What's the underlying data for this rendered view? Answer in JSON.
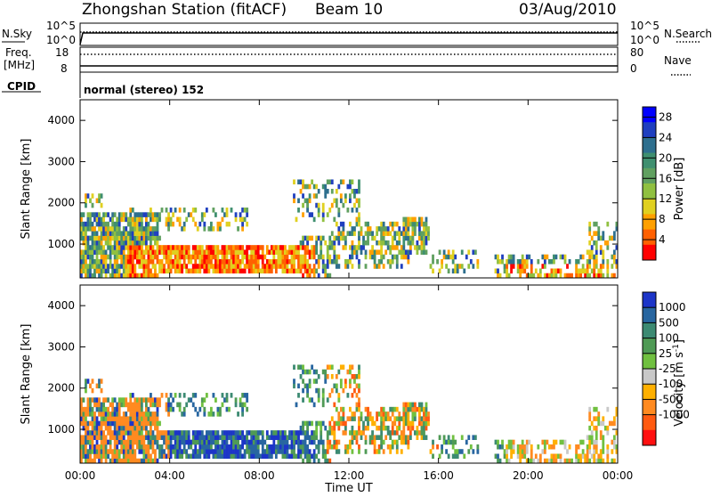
{
  "header": {
    "station": "Zhongshan Station (fitACF)",
    "beam": "Beam 10",
    "date": "03/Aug/2010"
  },
  "top_panels": {
    "nsky_label": "N.Sky",
    "nsky_ticks": [
      "10^5",
      "10^0"
    ],
    "nsearch_label": "N.Search",
    "nsearch_ticks": [
      "10^5",
      "10^0"
    ],
    "freq_label_1": "Freq.",
    "freq_label_2": "[MHz]",
    "freq_ticks": [
      "18",
      "8"
    ],
    "nave_label": "Nave",
    "nave_ticks": [
      "80",
      "0"
    ],
    "cpid_label": "CPID",
    "cpid_text": "normal (stereo) 152"
  },
  "time_axis": {
    "ticks": [
      "00:00",
      "04:00",
      "08:00",
      "12:00",
      "16:00",
      "20:00",
      "00:00"
    ],
    "label": "Time UT"
  },
  "chart_data": [
    {
      "type": "heatmap",
      "name": "power",
      "ylabel": "Slant Range [km]",
      "yticks": [
        1000,
        2000,
        3000,
        4000
      ],
      "ylim": [
        180,
        4500
      ],
      "xlim_hours": [
        0,
        24
      ],
      "colorbar": {
        "label": "Power [dB]",
        "ticks": [
          "4",
          "8",
          "12",
          "16",
          "20",
          "24",
          "28"
        ],
        "range": [
          0,
          30
        ],
        "colors": [
          "#0000ff",
          "#1f3fbf",
          "#2e6f8e",
          "#3f8f6f",
          "#60a060",
          "#90c040",
          "#e0d020",
          "#ffa000",
          "#ff6000",
          "#ff0000"
        ]
      }
    },
    {
      "type": "heatmap",
      "name": "velocity",
      "ylabel": "Slant Range [km]",
      "yticks": [
        1000,
        2000,
        3000,
        4000
      ],
      "ylim": [
        180,
        4500
      ],
      "xlim_hours": [
        0,
        24
      ],
      "colorbar": {
        "label_main": "Velocity [m s",
        "label_sup": "-1",
        "label_end": "]",
        "ticks": [
          "1000",
          "500",
          "100",
          "25",
          "-25",
          "-100",
          "-500",
          "-1000"
        ],
        "colors": [
          "#1c35c8",
          "#2866a0",
          "#3c8a72",
          "#4f9a55",
          "#70c040",
          "#c8c8c8",
          "#ffb000",
          "#ff8a20",
          "#ff5a10",
          "#ff1010"
        ]
      }
    }
  ]
}
